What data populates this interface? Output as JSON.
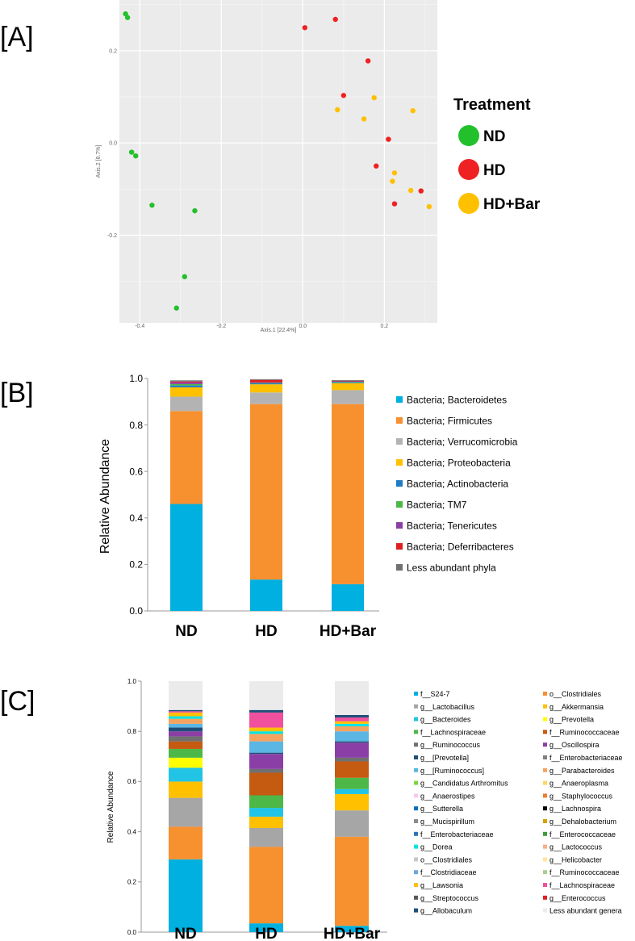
{
  "panels": {
    "a": "[A]",
    "b": "[B]",
    "c": "[C]"
  },
  "chart_data": [
    {
      "type": "scatter",
      "axis1": {
        "label": "Axis.1   [22.4%]",
        "range": [
          -0.45,
          0.33
        ],
        "ticks": [
          -0.4,
          -0.2,
          0.0,
          0.2
        ],
        "tick_labels": [
          "-0.4",
          "-0.2",
          "0.0",
          "0.2"
        ]
      },
      "axis2": {
        "label": "Axis.2   [8.7%]",
        "range": [
          -0.39,
          0.31
        ],
        "ticks": [
          -0.2,
          0.0,
          0.2
        ],
        "tick_labels": [
          "-0.2",
          "0.0",
          "0.2"
        ]
      },
      "legend_title": "Treatment",
      "series": [
        {
          "name": "ND",
          "color": "#22c02a",
          "points": [
            [
              -0.435,
              0.28
            ],
            [
              -0.43,
              0.272
            ],
            [
              -0.42,
              -0.02
            ],
            [
              -0.41,
              -0.028
            ],
            [
              -0.37,
              -0.135
            ],
            [
              -0.265,
              -0.147
            ],
            [
              -0.29,
              -0.29
            ],
            [
              -0.31,
              -0.358
            ]
          ]
        },
        {
          "name": "HD",
          "color": "#ee2222",
          "points": [
            [
              0.005,
              0.25
            ],
            [
              0.08,
              0.268
            ],
            [
              0.16,
              0.178
            ],
            [
              0.1,
              0.103
            ],
            [
              0.21,
              0.008
            ],
            [
              0.18,
              -0.05
            ],
            [
              0.225,
              -0.132
            ],
            [
              0.29,
              -0.104
            ]
          ]
        },
        {
          "name": "HD+Bar",
          "color": "#ffc000",
          "points": [
            [
              0.085,
              0.072
            ],
            [
              0.175,
              0.098
            ],
            [
              0.15,
              0.052
            ],
            [
              0.27,
              0.07
            ],
            [
              0.225,
              -0.065
            ],
            [
              0.22,
              -0.083
            ],
            [
              0.265,
              -0.103
            ],
            [
              0.31,
              -0.138
            ]
          ]
        }
      ]
    },
    {
      "type": "bar",
      "stacked": true,
      "categories": [
        "ND",
        "HD",
        "HD+Bar"
      ],
      "ylabel": "Relative Abundance",
      "ylim": [
        0,
        1
      ],
      "yticks": [
        0,
        0.2,
        0.4,
        0.6,
        0.8,
        1.0
      ],
      "ytick_labels": [
        "0.0",
        "0.2",
        "0.4",
        "0.6",
        "0.8",
        "1.0"
      ],
      "series": [
        {
          "name": "Bacteria; Bacteroidetes",
          "color": "#00b0e0",
          "values": [
            0.46,
            0.135,
            0.115
          ]
        },
        {
          "name": "Bacteria; Firmicutes",
          "color": "#f7902f",
          "values": [
            0.4,
            0.755,
            0.775
          ]
        },
        {
          "name": "Bacteria; Verrucomicrobia",
          "color": "#b3b3b3",
          "values": [
            0.062,
            0.05,
            0.06
          ]
        },
        {
          "name": "Bacteria; Proteobacteria",
          "color": "#ffc000",
          "values": [
            0.04,
            0.035,
            0.03
          ]
        },
        {
          "name": "Bacteria; Actinobacteria",
          "color": "#1f7cc4",
          "values": [
            0.008,
            0.004,
            0.004
          ]
        },
        {
          "name": "Bacteria; TM7",
          "color": "#4db848",
          "values": [
            0.006,
            0.002,
            0.002
          ]
        },
        {
          "name": "Bacteria; Tenericutes",
          "color": "#8b3fa6",
          "values": [
            0.007,
            0.003,
            0.002
          ]
        },
        {
          "name": "Bacteria; Deferribacteres",
          "color": "#e01f1f",
          "values": [
            0.004,
            0.01,
            0.002
          ]
        },
        {
          "name": "Less abundant phyla",
          "color": "#707070",
          "values": [
            0.005,
            0.003,
            0.003
          ]
        }
      ]
    },
    {
      "type": "bar",
      "stacked": true,
      "categories": [
        "ND",
        "HD",
        "HD+Bar"
      ],
      "ylabel": "Relative Abundance",
      "ylim": [
        0,
        1
      ],
      "yticks": [
        0,
        0.2,
        0.4,
        0.6,
        0.8,
        1.0
      ],
      "ytick_labels": [
        "0.0",
        "0.2",
        "0.4",
        "0.6",
        "0.8",
        "1.0"
      ],
      "legend": [
        {
          "name": "f__S24-7",
          "color": "#00b0e0"
        },
        {
          "name": "o__Clostridiales",
          "color": "#f7902f"
        },
        {
          "name": "g__Lactobacillus",
          "color": "#a6a6a6"
        },
        {
          "name": "g__Akkermansia",
          "color": "#ffc000"
        },
        {
          "name": "g__Bacteroides",
          "color": "#22c4e6"
        },
        {
          "name": "g__Prevotella",
          "color": "#ffff00"
        },
        {
          "name": "f__Lachnospiraceae",
          "color": "#4db848"
        },
        {
          "name": "f__Ruminococcaceae",
          "color": "#c55a11"
        },
        {
          "name": "g__Ruminococcus",
          "color": "#707070"
        },
        {
          "name": "g__Oscillospira",
          "color": "#8b3fa6"
        },
        {
          "name": "g__[Prevotella]",
          "color": "#1f4e79"
        },
        {
          "name": "f__Enterobacteriaceae",
          "color": "#808080"
        },
        {
          "name": "g__[Ruminococcus]",
          "color": "#5bb6e3"
        },
        {
          "name": "g__Parabacteroides",
          "color": "#f4a460"
        },
        {
          "name": "g__Candidatus Arthromitus",
          "color": "#7fd43f"
        },
        {
          "name": "g__Anaeroplasma",
          "color": "#ffd966"
        },
        {
          "name": "g__Anaerostipes",
          "color": "#f9c8ef"
        },
        {
          "name": "g__Staphylococcus",
          "color": "#ed7d31"
        },
        {
          "name": "g__Sutterella",
          "color": "#0070c0"
        },
        {
          "name": "g__Lachnospira",
          "color": "#000000"
        },
        {
          "name": "g__Mucispirillum",
          "color": "#8c8c8c"
        },
        {
          "name": "g__Dehalobacterium",
          "color": "#d6a200"
        },
        {
          "name": "f__Enterobacteriaceae",
          "color": "#2e75b6"
        },
        {
          "name": "f__Enterococcaceae",
          "color": "#3a9c3a"
        },
        {
          "name": "g__Dorea",
          "color": "#00e5e5"
        },
        {
          "name": "g__Lactococcus",
          "color": "#f4b183"
        },
        {
          "name": "o__Clostridiales",
          "color": "#c8c8c8"
        },
        {
          "name": "g__Helicobacter",
          "color": "#ffe699"
        },
        {
          "name": "f__Clostridiaceae",
          "color": "#6fa8dc"
        },
        {
          "name": "f__Ruminococcaceae",
          "color": "#a9d18e"
        },
        {
          "name": "g__Lawsonia",
          "color": "#ffc000"
        },
        {
          "name": "f__Lachnospiraceae",
          "color": "#f0509e"
        },
        {
          "name": "g__Streptococcus",
          "color": "#595959"
        },
        {
          "name": "g__Enterococcus",
          "color": "#e01f1f"
        },
        {
          "name": "g__Allobaculum",
          "color": "#1f4e79"
        },
        {
          "name": "Less abundant genera",
          "color": "#ebebeb"
        }
      ],
      "series": [
        {
          "name": "f__S24-7",
          "color": "#00b0e0",
          "values": [
            0.29,
            0.035,
            0.025
          ]
        },
        {
          "name": "o__Clostridiales",
          "color": "#f7902f",
          "values": [
            0.13,
            0.305,
            0.355
          ]
        },
        {
          "name": "g__Lactobacillus",
          "color": "#a6a6a6",
          "values": [
            0.115,
            0.075,
            0.105
          ]
        },
        {
          "name": "g__Akkermansia",
          "color": "#ffc000",
          "values": [
            0.065,
            0.045,
            0.065
          ]
        },
        {
          "name": "g__Bacteroides",
          "color": "#22c4e6",
          "values": [
            0.055,
            0.035,
            0.02
          ]
        },
        {
          "name": "g__Prevotella",
          "color": "#ffff00",
          "values": [
            0.04,
            0.0,
            0.0
          ]
        },
        {
          "name": "f__Lachnospiraceae",
          "color": "#4db848",
          "values": [
            0.035,
            0.05,
            0.045
          ]
        },
        {
          "name": "f__Ruminococcaceae",
          "color": "#c55a11",
          "values": [
            0.03,
            0.09,
            0.065
          ]
        },
        {
          "name": "g__Ruminococcus",
          "color": "#707070",
          "values": [
            0.02,
            0.015,
            0.015
          ]
        },
        {
          "name": "g__Oscillospira",
          "color": "#8b3fa6",
          "values": [
            0.02,
            0.06,
            0.06
          ]
        },
        {
          "name": "g__[Prevotella]",
          "color": "#1f4e79",
          "values": [
            0.015,
            0.005,
            0.005
          ]
        },
        {
          "name": "g__[Ruminococcus]",
          "color": "#5bb6e3",
          "values": [
            0.015,
            0.045,
            0.04
          ]
        },
        {
          "name": "g__Parabacteroides",
          "color": "#f4a460",
          "values": [
            0.02,
            0.03,
            0.02
          ]
        },
        {
          "name": "g__Dorea",
          "color": "#00e5e5",
          "values": [
            0.01,
            0.01,
            0.01
          ]
        },
        {
          "name": "g__Lawsonia",
          "color": "#ffc000",
          "values": [
            0.015,
            0.015,
            0.01
          ]
        },
        {
          "name": "f__Lachnospiraceae",
          "color": "#f0509e",
          "values": [
            0.005,
            0.06,
            0.015
          ]
        },
        {
          "name": "g__Allobaculum",
          "color": "#1f4e79",
          "values": [
            0.005,
            0.01,
            0.01
          ]
        },
        {
          "name": "Less abundant genera",
          "color": "#ebebeb",
          "values": [
            0.11,
            0.085,
            0.1
          ]
        }
      ]
    }
  ]
}
